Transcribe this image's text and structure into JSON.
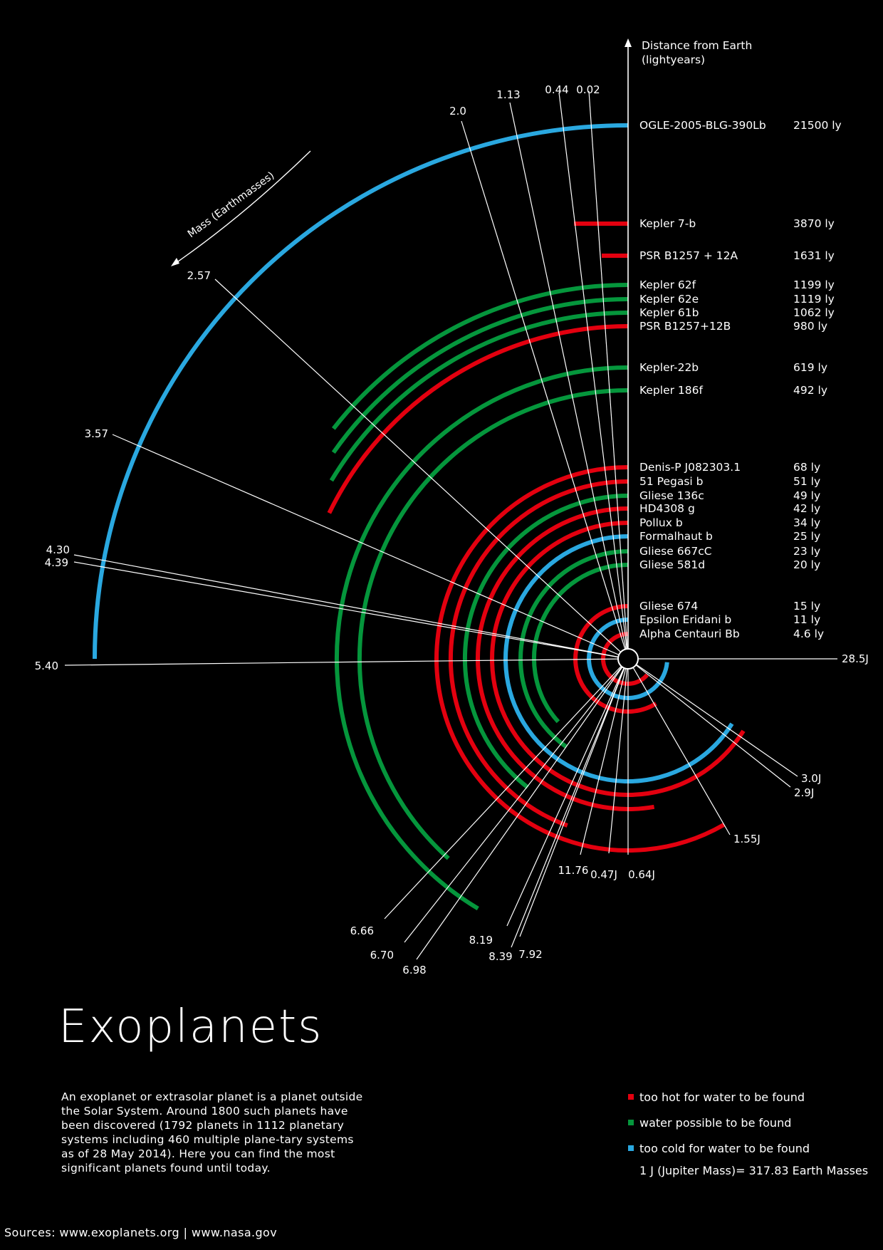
{
  "title": "Exoplanets",
  "description": "An exoplanet or extrasolar planet is a planet outside the Solar System. Around 1800 such planets have been discovered (1792 planets in 1112 planetary systems including 460 multiple plane-tary systems as of 28 May 2014). Here you can find the most significant planets found until today.",
  "sources": "Sources: www.exoplanets.org | www.nasa.gov",
  "legend": [
    {
      "key": "hot",
      "label": "too hot for water to be found",
      "color": "#e3000f"
    },
    {
      "key": "water",
      "label": "water possible to be found",
      "color": "#05963c"
    },
    {
      "key": "cold",
      "label": "too cold for water to be found",
      "color": "#2aa8e0"
    }
  ],
  "legend_note": "1 J (Jupiter Mass)= 317.83 Earth Masses",
  "chart_data": {
    "type": "radial-arc",
    "axis_distance_label": [
      "Distance from Earth",
      "(lightyears)"
    ],
    "axis_mass_label": "Mass (Earthmasses)",
    "planets": [
      {
        "name": "OGLE-2005-BLG-390Lb",
        "distance": "21500 ly",
        "mass": "5.40",
        "category": "cold"
      },
      {
        "name": "Kepler 7-b",
        "distance": "3870 ly",
        "mass": "0.44",
        "category": "hot"
      },
      {
        "name": "PSR B1257 + 12A",
        "distance": "1631 ly",
        "mass": "0.02",
        "category": "hot"
      },
      {
        "name": "Kepler 62f",
        "distance": "1199 ly",
        "mass": "3.57",
        "category": "water"
      },
      {
        "name": "Kepler 62e",
        "distance": "1119 ly",
        "mass": "4.30",
        "category": "water"
      },
      {
        "name": "Kepler 61b",
        "distance": "1062 ly",
        "mass": "4.39",
        "category": "water"
      },
      {
        "name": "PSR B1257+12B",
        "distance": "980 ly",
        "mass": "2.57",
        "category": "hot"
      },
      {
        "name": "Kepler-22b",
        "distance": "619 ly",
        "mass": "6.66",
        "category": "water"
      },
      {
        "name": "Kepler 186f",
        "distance": "492 ly",
        "mass": "1.13",
        "category": "water"
      },
      {
        "name": "Denis-P J082303.1",
        "distance": "68 ly",
        "mass": "28.5J",
        "category": "hot"
      },
      {
        "name": "51 Pegasi b",
        "distance": "51 ly",
        "mass": "0.47J",
        "category": "hot"
      },
      {
        "name": "Gliese 136c",
        "distance": "49 ly",
        "mass": "6.70",
        "category": "water"
      },
      {
        "name": "HD4308 g",
        "distance": "42 ly",
        "mass": "11.76",
        "category": "hot"
      },
      {
        "name": "Pollux b",
        "distance": "34 ly",
        "mass": "2.9J",
        "category": "hot"
      },
      {
        "name": "Formalhaut b",
        "distance": "25 ly",
        "mass": "3.0J",
        "category": "cold"
      },
      {
        "name": "Gliese 667cC",
        "distance": "23 ly",
        "mass": "6.98",
        "category": "water"
      },
      {
        "name": "Gliese 581d",
        "distance": "20 ly",
        "mass": "7.92",
        "category": "water"
      },
      {
        "name": "Gliese 674",
        "distance": "15 ly",
        "mass": "",
        "category": "hot"
      },
      {
        "name": "Epsilon Eridani b",
        "distance": "11 ly",
        "mass": "1.55J",
        "category": "cold"
      },
      {
        "name": "Alpha Centauri Bb",
        "distance": "4.6 ly",
        "mass": "",
        "category": "hot"
      }
    ],
    "mass_tick_labels": [
      "0.02",
      "0.44",
      "1.13",
      "2.0",
      "2.57",
      "3.57",
      "4.30",
      "4.39",
      "5.40",
      "6.66",
      "6.70",
      "6.98",
      "8.19",
      "8.39",
      "7.92",
      "11.76",
      "0.47J",
      "0.64J",
      "1.55J",
      "2.9J",
      "3.0J",
      "28.5J"
    ]
  }
}
